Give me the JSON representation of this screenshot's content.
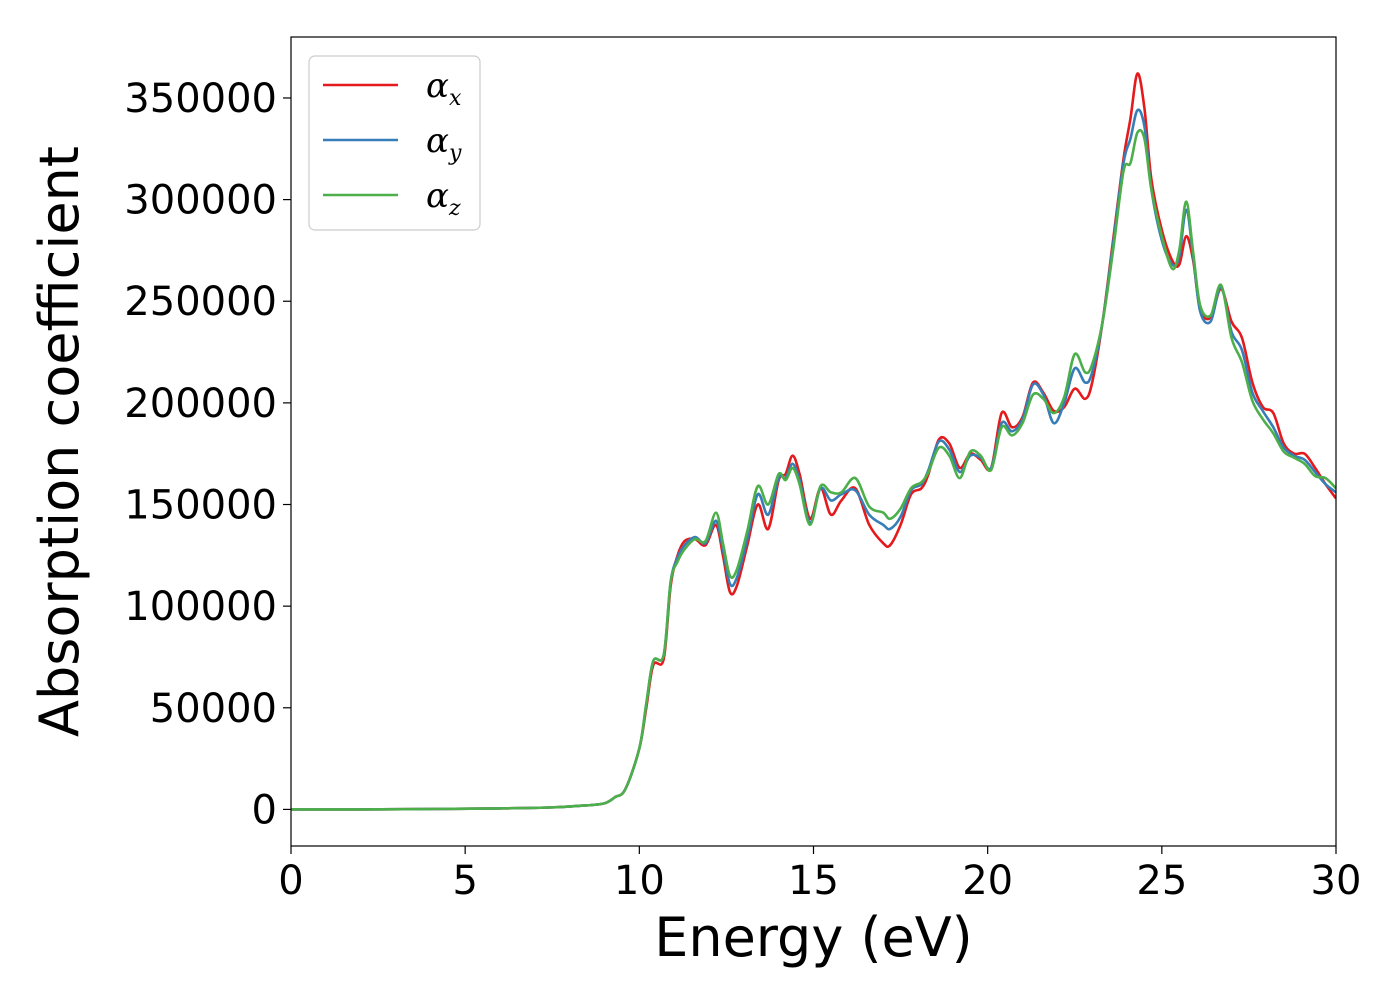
{
  "chart_data": {
    "type": "line",
    "title": "",
    "xlabel": "Energy (eV)",
    "ylabel": "Absorption coefficient",
    "xlim": [
      0,
      30
    ],
    "ylim": [
      -18000,
      380000
    ],
    "xticks": [
      0,
      5,
      10,
      15,
      20,
      25,
      30
    ],
    "xtick_labels": [
      "0",
      "5",
      "10",
      "15",
      "20",
      "25",
      "30"
    ],
    "yticks": [
      0,
      50000,
      100000,
      150000,
      200000,
      250000,
      300000,
      350000
    ],
    "ytick_labels": [
      "0",
      "50000",
      "100000",
      "150000",
      "200000",
      "250000",
      "300000",
      "350000"
    ],
    "grid": false,
    "legend_position": "top-left",
    "series": [
      {
        "name": "α",
        "subscript": "x",
        "color": "#e41a1c",
        "points": [
          [
            0,
            0
          ],
          [
            2,
            0
          ],
          [
            4,
            200
          ],
          [
            6,
            500
          ],
          [
            7.5,
            1000
          ],
          [
            8.5,
            2000
          ],
          [
            9,
            3000
          ],
          [
            9.3,
            6000
          ],
          [
            9.6,
            10000
          ],
          [
            10,
            30000
          ],
          [
            10.2,
            50000
          ],
          [
            10.4,
            71000
          ],
          [
            10.7,
            74000
          ],
          [
            10.9,
            110000
          ],
          [
            11.1,
            125000
          ],
          [
            11.3,
            132000
          ],
          [
            11.6,
            133000
          ],
          [
            11.9,
            130000
          ],
          [
            12.2,
            140000
          ],
          [
            12.4,
            125000
          ],
          [
            12.6,
            107000
          ],
          [
            12.8,
            110000
          ],
          [
            13.1,
            130000
          ],
          [
            13.4,
            150000
          ],
          [
            13.7,
            138000
          ],
          [
            14,
            162000
          ],
          [
            14.2,
            165000
          ],
          [
            14.4,
            174000
          ],
          [
            14.6,
            165000
          ],
          [
            14.9,
            143000
          ],
          [
            15.2,
            158000
          ],
          [
            15.5,
            145000
          ],
          [
            15.8,
            152000
          ],
          [
            16.2,
            158000
          ],
          [
            16.6,
            140000
          ],
          [
            17,
            131000
          ],
          [
            17.2,
            130000
          ],
          [
            17.5,
            140000
          ],
          [
            17.8,
            155000
          ],
          [
            18.1,
            158000
          ],
          [
            18.3,
            165000
          ],
          [
            18.6,
            182000
          ],
          [
            18.9,
            180000
          ],
          [
            19.2,
            168000
          ],
          [
            19.5,
            175000
          ],
          [
            19.8,
            172000
          ],
          [
            20.1,
            168000
          ],
          [
            20.4,
            195000
          ],
          [
            20.7,
            188000
          ],
          [
            21,
            193000
          ],
          [
            21.3,
            210000
          ],
          [
            21.6,
            205000
          ],
          [
            21.9,
            196000
          ],
          [
            22.2,
            198000
          ],
          [
            22.5,
            207000
          ],
          [
            22.8,
            202000
          ],
          [
            23,
            210000
          ],
          [
            23.3,
            240000
          ],
          [
            23.6,
            280000
          ],
          [
            23.9,
            320000
          ],
          [
            24.1,
            340000
          ],
          [
            24.3,
            362000
          ],
          [
            24.5,
            345000
          ],
          [
            24.7,
            310000
          ],
          [
            25,
            285000
          ],
          [
            25.3,
            270000
          ],
          [
            25.5,
            268000
          ],
          [
            25.7,
            282000
          ],
          [
            25.9,
            270000
          ],
          [
            26.1,
            246000
          ],
          [
            26.4,
            242000
          ],
          [
            26.7,
            256000
          ],
          [
            27,
            240000
          ],
          [
            27.3,
            232000
          ],
          [
            27.6,
            210000
          ],
          [
            27.9,
            198000
          ],
          [
            28.2,
            195000
          ],
          [
            28.5,
            180000
          ],
          [
            28.8,
            175000
          ],
          [
            29.1,
            175000
          ],
          [
            29.4,
            168000
          ],
          [
            29.7,
            160000
          ],
          [
            30,
            153000
          ]
        ]
      },
      {
        "name": "α",
        "subscript": "y",
        "color": "#377eb8",
        "points": [
          [
            0,
            0
          ],
          [
            2,
            0
          ],
          [
            4,
            200
          ],
          [
            6,
            500
          ],
          [
            7.5,
            1000
          ],
          [
            8.5,
            2000
          ],
          [
            9,
            3000
          ],
          [
            9.3,
            6000
          ],
          [
            9.6,
            10000
          ],
          [
            10,
            30000
          ],
          [
            10.2,
            52000
          ],
          [
            10.4,
            73000
          ],
          [
            10.7,
            76000
          ],
          [
            10.9,
            112000
          ],
          [
            11.1,
            124000
          ],
          [
            11.3,
            130000
          ],
          [
            11.6,
            134000
          ],
          [
            11.9,
            131000
          ],
          [
            12.2,
            142000
          ],
          [
            12.4,
            128000
          ],
          [
            12.6,
            111000
          ],
          [
            12.8,
            114000
          ],
          [
            13.1,
            133000
          ],
          [
            13.4,
            155000
          ],
          [
            13.7,
            145000
          ],
          [
            14,
            163000
          ],
          [
            14.2,
            163000
          ],
          [
            14.4,
            170000
          ],
          [
            14.6,
            162000
          ],
          [
            14.9,
            141000
          ],
          [
            15.2,
            158000
          ],
          [
            15.5,
            152000
          ],
          [
            15.8,
            155000
          ],
          [
            16.2,
            157000
          ],
          [
            16.6,
            145000
          ],
          [
            17,
            140000
          ],
          [
            17.2,
            138000
          ],
          [
            17.5,
            144000
          ],
          [
            17.8,
            157000
          ],
          [
            18.1,
            160000
          ],
          [
            18.3,
            167000
          ],
          [
            18.6,
            181000
          ],
          [
            18.9,
            177000
          ],
          [
            19.2,
            166000
          ],
          [
            19.5,
            174000
          ],
          [
            19.8,
            173000
          ],
          [
            20.1,
            168000
          ],
          [
            20.4,
            190000
          ],
          [
            20.7,
            186000
          ],
          [
            21,
            192000
          ],
          [
            21.3,
            209000
          ],
          [
            21.6,
            204000
          ],
          [
            21.9,
            190000
          ],
          [
            22.2,
            200000
          ],
          [
            22.5,
            217000
          ],
          [
            22.8,
            210000
          ],
          [
            23,
            215000
          ],
          [
            23.3,
            240000
          ],
          [
            23.6,
            278000
          ],
          [
            23.9,
            318000
          ],
          [
            24.1,
            330000
          ],
          [
            24.3,
            344000
          ],
          [
            24.5,
            336000
          ],
          [
            24.7,
            305000
          ],
          [
            25,
            280000
          ],
          [
            25.3,
            268000
          ],
          [
            25.5,
            272000
          ],
          [
            25.7,
            295000
          ],
          [
            25.9,
            272000
          ],
          [
            26.1,
            245000
          ],
          [
            26.4,
            240000
          ],
          [
            26.7,
            257000
          ],
          [
            27,
            235000
          ],
          [
            27.3,
            226000
          ],
          [
            27.6,
            205000
          ],
          [
            27.9,
            196000
          ],
          [
            28.2,
            188000
          ],
          [
            28.5,
            178000
          ],
          [
            28.8,
            174000
          ],
          [
            29.1,
            172000
          ],
          [
            29.4,
            166000
          ],
          [
            29.7,
            160000
          ],
          [
            30,
            156000
          ]
        ]
      },
      {
        "name": "α",
        "subscript": "z",
        "color": "#4daf4a",
        "points": [
          [
            0,
            0
          ],
          [
            2,
            0
          ],
          [
            4,
            200
          ],
          [
            6,
            500
          ],
          [
            7.5,
            1000
          ],
          [
            8.5,
            2000
          ],
          [
            9,
            3000
          ],
          [
            9.3,
            6000
          ],
          [
            9.6,
            10000
          ],
          [
            10,
            30000
          ],
          [
            10.2,
            52000
          ],
          [
            10.4,
            73000
          ],
          [
            10.7,
            76000
          ],
          [
            10.9,
            112000
          ],
          [
            11.1,
            122000
          ],
          [
            11.3,
            128000
          ],
          [
            11.6,
            133000
          ],
          [
            11.9,
            132000
          ],
          [
            12.2,
            146000
          ],
          [
            12.4,
            131000
          ],
          [
            12.6,
            115000
          ],
          [
            12.8,
            118000
          ],
          [
            13.1,
            137000
          ],
          [
            13.4,
            159000
          ],
          [
            13.7,
            150000
          ],
          [
            14,
            165000
          ],
          [
            14.2,
            162000
          ],
          [
            14.4,
            168000
          ],
          [
            14.6,
            160000
          ],
          [
            14.9,
            140000
          ],
          [
            15.2,
            159000
          ],
          [
            15.5,
            156000
          ],
          [
            15.8,
            156000
          ],
          [
            16.2,
            163000
          ],
          [
            16.6,
            149000
          ],
          [
            17,
            146000
          ],
          [
            17.2,
            143000
          ],
          [
            17.5,
            148000
          ],
          [
            17.8,
            158000
          ],
          [
            18.1,
            161000
          ],
          [
            18.3,
            166000
          ],
          [
            18.6,
            178000
          ],
          [
            18.9,
            174000
          ],
          [
            19.2,
            163000
          ],
          [
            19.5,
            176000
          ],
          [
            19.8,
            174000
          ],
          [
            20.1,
            167000
          ],
          [
            20.4,
            188000
          ],
          [
            20.7,
            184000
          ],
          [
            21,
            190000
          ],
          [
            21.3,
            204000
          ],
          [
            21.6,
            202000
          ],
          [
            21.9,
            195000
          ],
          [
            22.2,
            203000
          ],
          [
            22.5,
            224000
          ],
          [
            22.8,
            215000
          ],
          [
            23,
            219000
          ],
          [
            23.3,
            240000
          ],
          [
            23.6,
            275000
          ],
          [
            23.9,
            314000
          ],
          [
            24.1,
            318000
          ],
          [
            24.3,
            333000
          ],
          [
            24.5,
            330000
          ],
          [
            24.7,
            305000
          ],
          [
            25,
            282000
          ],
          [
            25.3,
            266000
          ],
          [
            25.5,
            275000
          ],
          [
            25.7,
            299000
          ],
          [
            25.9,
            274000
          ],
          [
            26.1,
            248000
          ],
          [
            26.4,
            243000
          ],
          [
            26.7,
            258000
          ],
          [
            27,
            232000
          ],
          [
            27.3,
            220000
          ],
          [
            27.6,
            201000
          ],
          [
            27.9,
            192000
          ],
          [
            28.2,
            185000
          ],
          [
            28.5,
            176000
          ],
          [
            28.8,
            173000
          ],
          [
            29.1,
            170000
          ],
          [
            29.4,
            164000
          ],
          [
            29.7,
            163000
          ],
          [
            30,
            158000
          ]
        ]
      }
    ]
  }
}
